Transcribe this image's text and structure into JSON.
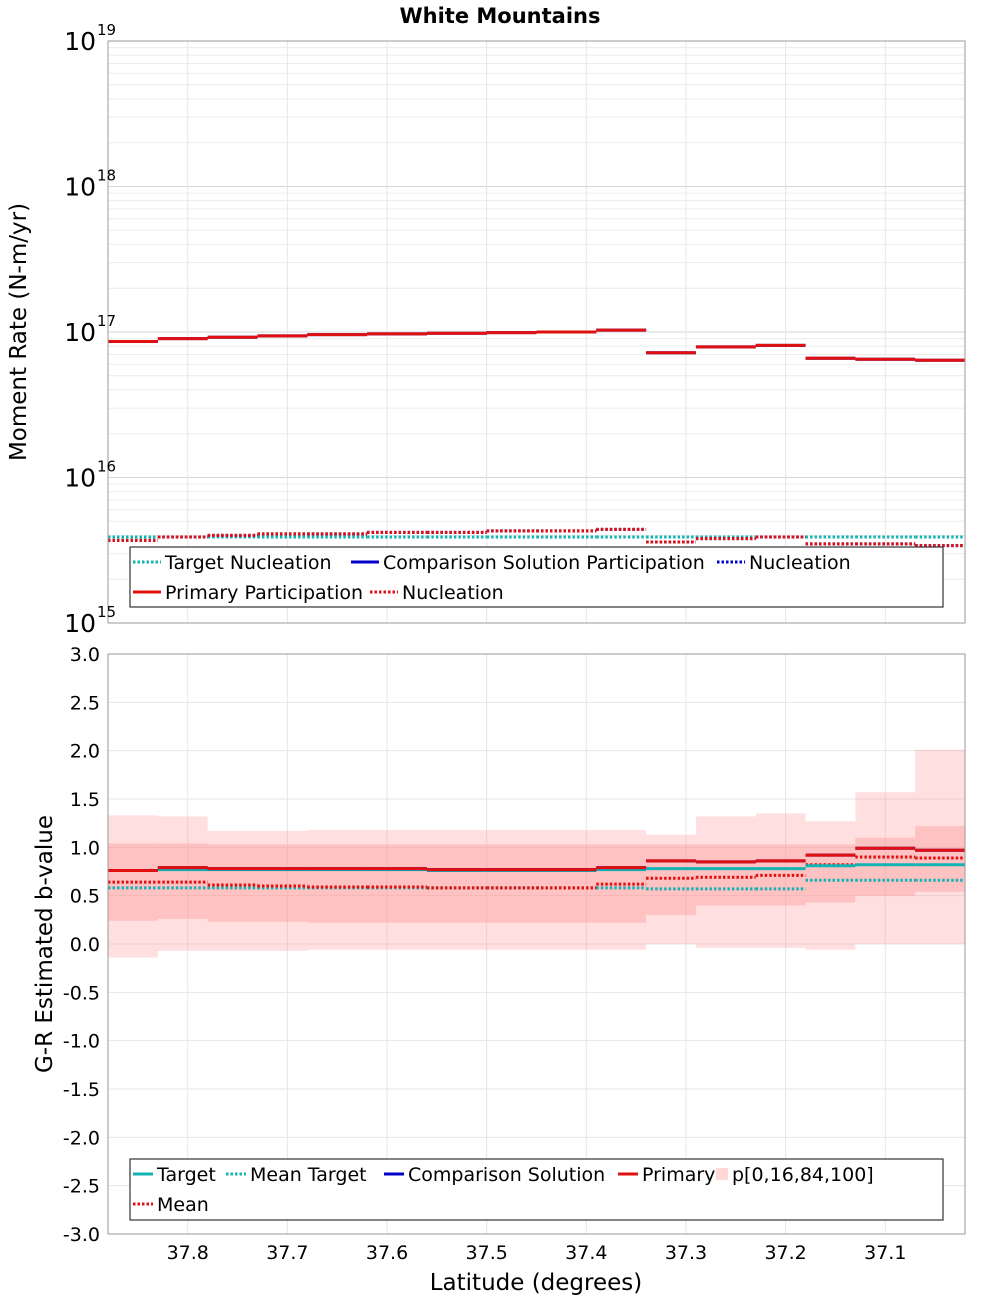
{
  "chart_data": [
    {
      "type": "line",
      "title": "White Mountains",
      "ylabel": "Moment Rate (N-m/yr)",
      "yscale": "log",
      "ylim": [
        1000000000000000.0,
        1e+19
      ],
      "xlim": [
        37.88,
        37.02
      ],
      "x_reversed": true,
      "grid": true,
      "y_ticks": [
        {
          "base": "10",
          "exp": "15"
        },
        {
          "base": "10",
          "exp": "16"
        },
        {
          "base": "10",
          "exp": "17"
        },
        {
          "base": "10",
          "exp": "18"
        },
        {
          "base": "10",
          "exp": "19"
        }
      ],
      "bin_edges": [
        37.88,
        37.83,
        37.78,
        37.73,
        37.68,
        37.62,
        37.56,
        37.5,
        37.45,
        37.39,
        37.34,
        37.29,
        37.23,
        37.18,
        37.13,
        37.07,
        37.02
      ],
      "series": [
        {
          "name": "Target Nucleation",
          "color": "#14b3b3",
          "style": "dotted",
          "values": [
            3900000000000000.0,
            3900000000000000.0,
            3900000000000000.0,
            3900000000000000.0,
            3900000000000000.0,
            3900000000000000.0,
            3900000000000000.0,
            3900000000000000.0,
            3900000000000000.0,
            3900000000000000.0,
            3900000000000000.0,
            3900000000000000.0,
            3900000000000000.0,
            3900000000000000.0,
            3900000000000000.0,
            3900000000000000.0
          ]
        },
        {
          "name": "Comparison Solution Participation",
          "color": "#0000c8",
          "style": "solid",
          "values": [
            8.6e+16,
            9e+16,
            9.2e+16,
            9.4e+16,
            9.6e+16,
            9.7e+16,
            9.8e+16,
            9.9e+16,
            1e+17,
            1.03e+17,
            7.2e+16,
            7.9e+16,
            8.1e+16,
            6.6e+16,
            6.5e+16,
            6.4e+16
          ]
        },
        {
          "name": "Nucleation",
          "color": "#0000c8",
          "style": "dotted",
          "values": [
            3700000000000000.0,
            3900000000000000.0,
            4000000000000000.0,
            4100000000000000.0,
            4100000000000000.0,
            4200000000000000.0,
            4200000000000000.0,
            4300000000000000.0,
            4300000000000000.0,
            4400000000000000.0,
            3600000000000000.0,
            3800000000000000.0,
            3900000000000000.0,
            3500000000000000.0,
            3500000000000000.0,
            3400000000000000.0
          ]
        },
        {
          "name": "Primary Participation",
          "color": "#e01010",
          "style": "solid",
          "values": [
            8.6e+16,
            9e+16,
            9.2e+16,
            9.4e+16,
            9.6e+16,
            9.7e+16,
            9.8e+16,
            9.9e+16,
            1e+17,
            1.03e+17,
            7.2e+16,
            7.9e+16,
            8.1e+16,
            6.6e+16,
            6.5e+16,
            6.4e+16
          ]
        },
        {
          "name": "Nucleation",
          "color": "#e01010",
          "style": "dotted",
          "values": [
            3700000000000000.0,
            3900000000000000.0,
            4000000000000000.0,
            4100000000000000.0,
            4100000000000000.0,
            4200000000000000.0,
            4200000000000000.0,
            4300000000000000.0,
            4300000000000000.0,
            4400000000000000.0,
            3600000000000000.0,
            3800000000000000.0,
            3900000000000000.0,
            3500000000000000.0,
            3500000000000000.0,
            3400000000000000.0
          ]
        }
      ],
      "legend": {
        "placement": "bottom",
        "rows": [
          [
            {
              "series": 0,
              "label": "Target Nucleation"
            },
            {
              "series": 1,
              "label": "Comparison Solution Participation"
            },
            {
              "series": 2,
              "label": "Nucleation"
            }
          ],
          [
            {
              "series": 3,
              "label": "Primary Participation"
            },
            {
              "series": 4,
              "label": "Nucleation"
            }
          ]
        ]
      }
    },
    {
      "type": "line",
      "xlabel": "Latitude (degrees)",
      "ylabel": "G-R Estimated b-value",
      "ylim": [
        -3.0,
        3.0
      ],
      "xlim": [
        37.88,
        37.02
      ],
      "x_reversed": true,
      "grid": true,
      "y_ticks": [
        "-3.0",
        "-2.5",
        "-2.0",
        "-1.5",
        "-1.0",
        "-0.5",
        "0.0",
        "0.5",
        "1.0",
        "1.5",
        "2.0",
        "2.5",
        "3.0"
      ],
      "x_ticks": [
        "37.8",
        "37.7",
        "37.6",
        "37.5",
        "37.4",
        "37.3",
        "37.2",
        "37.1"
      ],
      "bin_edges": [
        37.88,
        37.83,
        37.78,
        37.73,
        37.68,
        37.62,
        37.56,
        37.5,
        37.45,
        37.39,
        37.34,
        37.29,
        37.23,
        37.18,
        37.13,
        37.07,
        37.02
      ],
      "bands": {
        "name": "p[0,16,84,100]",
        "color": "#ff8c8c",
        "p0": [
          -0.14,
          -0.07,
          -0.07,
          -0.07,
          -0.06,
          -0.06,
          -0.06,
          -0.06,
          -0.06,
          -0.06,
          0.0,
          -0.04,
          -0.04,
          -0.06,
          0.0,
          0.0
        ],
        "p16": [
          0.24,
          0.26,
          0.23,
          0.23,
          0.22,
          0.22,
          0.22,
          0.22,
          0.22,
          0.22,
          0.3,
          0.4,
          0.4,
          0.43,
          0.5,
          0.54
        ],
        "p84": [
          1.04,
          1.04,
          1.03,
          1.03,
          1.03,
          1.03,
          1.03,
          1.03,
          1.03,
          1.03,
          1.03,
          1.03,
          1.03,
          1.03,
          1.1,
          1.22
        ],
        "p100": [
          1.33,
          1.32,
          1.17,
          1.17,
          1.18,
          1.18,
          1.18,
          1.18,
          1.18,
          1.18,
          1.13,
          1.32,
          1.35,
          1.27,
          1.57,
          2.01
        ]
      },
      "series": [
        {
          "name": "Target",
          "color": "#14b3b3",
          "style": "solid",
          "values": [
            0.76,
            0.77,
            0.77,
            0.77,
            0.77,
            0.77,
            0.76,
            0.76,
            0.76,
            0.77,
            0.78,
            0.78,
            0.78,
            0.81,
            0.82,
            0.82
          ]
        },
        {
          "name": "Mean Target",
          "color": "#14b3b3",
          "style": "dotted",
          "values": [
            0.58,
            0.58,
            0.58,
            0.58,
            0.58,
            0.58,
            0.58,
            0.58,
            0.58,
            0.58,
            0.57,
            0.57,
            0.57,
            0.66,
            0.66,
            0.66
          ]
        },
        {
          "name": "Comparison Solution",
          "color": "#0000c8",
          "style": "solid",
          "values": [
            0.76,
            0.79,
            0.78,
            0.78,
            0.78,
            0.78,
            0.77,
            0.77,
            0.77,
            0.79,
            0.86,
            0.85,
            0.86,
            0.92,
            0.99,
            0.97
          ]
        },
        {
          "name": "Primary",
          "color": "#e01010",
          "style": "solid",
          "values": [
            0.76,
            0.79,
            0.78,
            0.78,
            0.78,
            0.78,
            0.77,
            0.77,
            0.77,
            0.79,
            0.86,
            0.85,
            0.86,
            0.92,
            0.99,
            0.97
          ]
        },
        {
          "name": "Mean",
          "color": "#e01010",
          "style": "dotted",
          "values": [
            0.64,
            0.64,
            0.61,
            0.6,
            0.59,
            0.59,
            0.58,
            0.58,
            0.58,
            0.62,
            0.68,
            0.69,
            0.71,
            0.82,
            0.9,
            0.89
          ]
        }
      ],
      "legend": {
        "placement": "bottom",
        "rows": [
          [
            {
              "series": 0,
              "label": "Target"
            },
            {
              "series": 1,
              "label": "Mean Target"
            },
            {
              "series": 2,
              "label": "Comparison Solution"
            },
            {
              "series": 3,
              "label": "Primary"
            },
            {
              "band": true,
              "label": "p[0,16,84,100]"
            }
          ],
          [
            {
              "series": 4,
              "label": "Mean"
            }
          ]
        ]
      }
    }
  ]
}
